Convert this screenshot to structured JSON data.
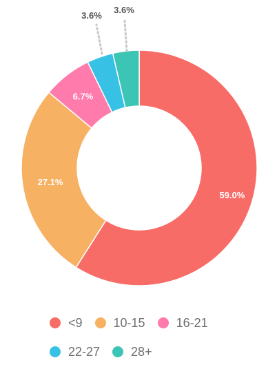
{
  "chart_data": {
    "type": "pie",
    "variant": "donut",
    "categories": [
      "<9",
      "10-15",
      "16-21",
      "22-27",
      "28+"
    ],
    "values": [
      59.0,
      27.1,
      6.7,
      3.6,
      3.6
    ],
    "data_labels": [
      "59.0%",
      "27.1%",
      "6.7%",
      "3.6%",
      "3.6%"
    ],
    "colors": [
      "#f76c67",
      "#f7b163",
      "#ff7bab",
      "#37c1e5",
      "#3cc4b4"
    ],
    "label_colors": [
      "#ffffff",
      "#ffffff",
      "#ffffff",
      "#555555",
      "#555555"
    ],
    "legend_position": "bottom",
    "title": "",
    "xlabel": "",
    "ylabel": ""
  },
  "legend": {
    "items": [
      {
        "label": "<9",
        "color": "#f76c67"
      },
      {
        "label": "10-15",
        "color": "#f7b163"
      },
      {
        "label": "16-21",
        "color": "#ff7bab"
      },
      {
        "label": "22-27",
        "color": "#37c1e5"
      },
      {
        "label": "28+",
        "color": "#3cc4b4"
      }
    ]
  }
}
